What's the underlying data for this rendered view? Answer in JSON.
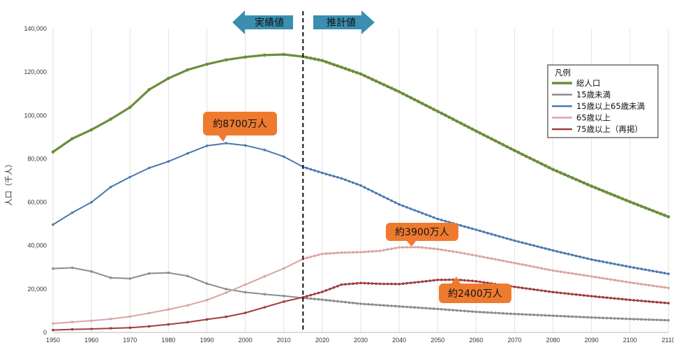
{
  "chart_data": {
    "type": "line",
    "ylabel": "人口（千人）",
    "ylim": [
      0,
      140000
    ],
    "xlim": [
      1950,
      2110
    ],
    "y_ticks": [
      "0",
      "20,000",
      "40,000",
      "60,000",
      "80,000",
      "100,000",
      "120,000",
      "140,000"
    ],
    "x_ticks": [
      "1950",
      "1960",
      "1970",
      "1980",
      "1990",
      "2000",
      "2010",
      "2020",
      "2030",
      "2040",
      "2050",
      "2060",
      "2070",
      "2080",
      "2090",
      "2100",
      "2110"
    ],
    "grid": "vertical",
    "divider_year": 2015,
    "actual_label": "実績値",
    "projection_label": "推計値",
    "legend": {
      "title": "凡例",
      "position": "top-right"
    },
    "annotations": [
      {
        "text": "約8700万人",
        "x": 1995,
        "y": 87000
      },
      {
        "text": "約3900万人",
        "x": 2040,
        "y": 39000
      },
      {
        "text": "約2400万人",
        "x": 2055,
        "y": 24000
      }
    ],
    "series": [
      {
        "name": "総人口",
        "color": "#6b8e3a",
        "x": [
          1950,
          1955,
          1960,
          1965,
          1970,
          1975,
          1980,
          1985,
          1990,
          1995,
          2000,
          2005,
          2010,
          2015,
          2020,
          2030,
          2040,
          2050,
          2060,
          2070,
          2080,
          2090,
          2100,
          2110
        ],
        "values": [
          83200,
          89300,
          93400,
          98300,
          103700,
          111900,
          117100,
          121000,
          123600,
          125600,
          126900,
          127800,
          128100,
          127100,
          125300,
          119100,
          110900,
          101900,
          92800,
          83800,
          75100,
          67400,
          60200,
          53300
        ]
      },
      {
        "name": "15歳未満",
        "color": "#8c8c8c",
        "x": [
          1950,
          1955,
          1960,
          1965,
          1970,
          1975,
          1980,
          1985,
          1990,
          1995,
          2000,
          2005,
          2010,
          2015,
          2020,
          2030,
          2040,
          2050,
          2060,
          2070,
          2080,
          2090,
          2100,
          2110
        ],
        "values": [
          29400,
          29800,
          28100,
          25200,
          24800,
          27200,
          27500,
          26000,
          22500,
          20000,
          18500,
          17600,
          16800,
          15900,
          15100,
          13200,
          12000,
          10800,
          9500,
          8500,
          7700,
          6900,
          6200,
          5600
        ]
      },
      {
        "name": "15歳以上65歳未満",
        "color": "#4a78b0",
        "x": [
          1950,
          1955,
          1960,
          1965,
          1970,
          1975,
          1980,
          1985,
          1990,
          1995,
          2000,
          2005,
          2010,
          2015,
          2020,
          2025,
          2030,
          2040,
          2050,
          2060,
          2070,
          2080,
          2090,
          2100,
          2110
        ],
        "values": [
          49700,
          55200,
          60000,
          67000,
          71600,
          75800,
          78800,
          82500,
          86000,
          87200,
          86200,
          84100,
          81000,
          76300,
          73500,
          71000,
          67700,
          59000,
          52300,
          47300,
          42300,
          37800,
          33600,
          30200,
          27000
        ]
      },
      {
        "name": "65歳以上",
        "color": "#dba3a3",
        "x": [
          1950,
          1955,
          1960,
          1965,
          1970,
          1975,
          1980,
          1985,
          1990,
          1995,
          2000,
          2005,
          2010,
          2015,
          2020,
          2025,
          2030,
          2035,
          2040,
          2045,
          2050,
          2055,
          2060,
          2070,
          2080,
          2090,
          2100,
          2110
        ],
        "values": [
          4100,
          4800,
          5400,
          6200,
          7300,
          8900,
          10600,
          12500,
          14900,
          18300,
          22000,
          25800,
          29500,
          33900,
          36200,
          36800,
          37000,
          37600,
          39200,
          39300,
          38400,
          37000,
          35400,
          32000,
          28500,
          25800,
          23000,
          20500
        ]
      },
      {
        "name": "75歳以上（再掲）",
        "color": "#a23c3c",
        "x": [
          1950,
          1955,
          1960,
          1965,
          1970,
          1975,
          1980,
          1985,
          1990,
          1995,
          2000,
          2005,
          2010,
          2015,
          2020,
          2025,
          2030,
          2035,
          2040,
          2045,
          2050,
          2055,
          2060,
          2065,
          2070,
          2080,
          2090,
          2100,
          2110
        ],
        "values": [
          1100,
          1400,
          1600,
          1900,
          2200,
          2800,
          3700,
          4700,
          6000,
          7200,
          9000,
          11600,
          14200,
          16200,
          18700,
          22000,
          22800,
          22400,
          22300,
          23200,
          24200,
          24300,
          23600,
          22300,
          21000,
          18600,
          16700,
          15000,
          13500
        ]
      }
    ]
  }
}
